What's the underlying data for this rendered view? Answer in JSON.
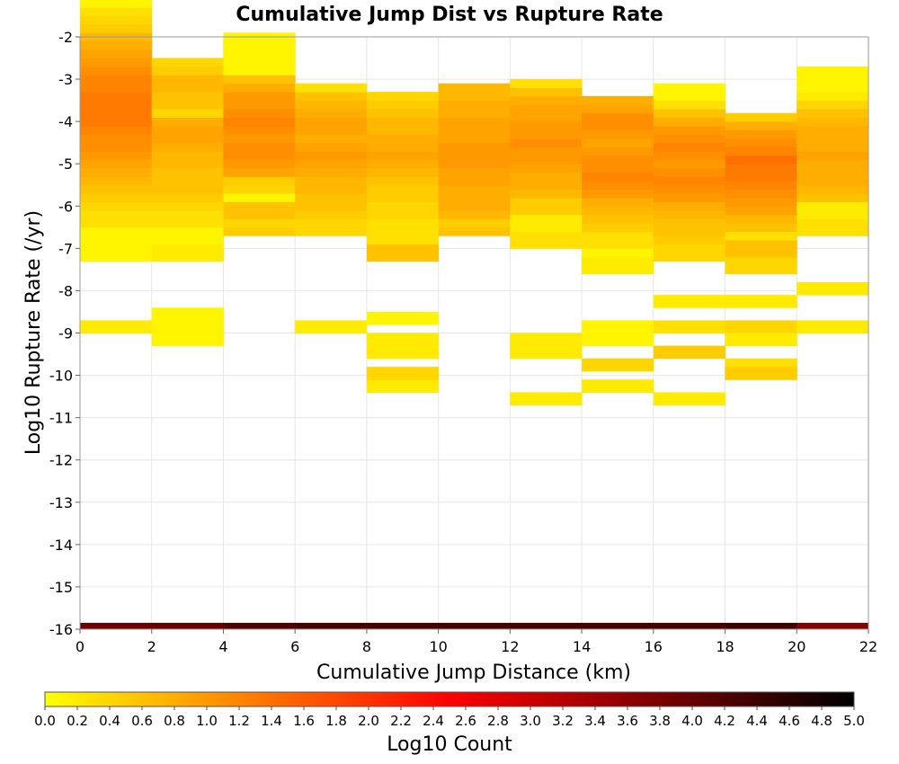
{
  "chart_data": {
    "type": "heatmap",
    "title": "Cumulative Jump Dist vs Rupture Rate",
    "xlabel": "Cumulative Jump Distance (km)",
    "ylabel": "Log10 Rupture Rate (/yr)",
    "xlim": [
      0,
      22
    ],
    "ylim": [
      -16,
      -2
    ],
    "x_ticks": [
      0,
      2,
      4,
      6,
      8,
      10,
      12,
      14,
      16,
      18,
      20,
      22
    ],
    "y_ticks": [
      -2,
      -3,
      -4,
      -5,
      -6,
      -7,
      -8,
      -9,
      -10,
      -11,
      -12,
      -13,
      -14,
      -15,
      -16
    ],
    "grid": true,
    "x_bin_width": 2,
    "y_bin_height": 0.2,
    "colorbar": {
      "label": "Log10 Count",
      "range": [
        0,
        5
      ],
      "ticks": [
        "0.0",
        "0.2",
        "0.4",
        "0.6",
        "0.8",
        "1.0",
        "1.2",
        "1.4",
        "1.6",
        "1.8",
        "2.0",
        "2.2",
        "2.4",
        "2.6",
        "2.8",
        "3.0",
        "3.2",
        "3.4",
        "3.6",
        "3.8",
        "4.0",
        "4.2",
        "4.4",
        "4.6",
        "4.8",
        "5.0"
      ],
      "colors": [
        "#ffff00",
        "#ff7f00",
        "#ff0000",
        "#7f0000",
        "#000000"
      ]
    },
    "columns": [
      {
        "x": 0,
        "y_start": -7.3,
        "values": [
          0.1,
          0.1,
          0.1,
          0.1,
          0.3,
          0.3,
          0.4,
          0.5,
          0.6,
          0.7,
          0.8,
          0.9,
          1.0,
          1.1,
          1.1,
          1.2,
          1.3,
          1.3,
          1.3,
          1.3,
          1.2,
          1.2,
          1.1,
          1.0,
          0.9,
          0.8,
          0.7,
          0.5,
          0.4,
          0.3,
          0.1,
          0.1,
          0.1
        ]
      },
      {
        "x": 2,
        "y_start": -7.3,
        "values": [
          0.2,
          0.2,
          0.1,
          0.1,
          0.3,
          0.3,
          0.4,
          0.5,
          0.6,
          0.6,
          0.6,
          0.7,
          0.7,
          0.8,
          0.9,
          0.9,
          0.8,
          0.4,
          0.6,
          0.6,
          0.7,
          0.7,
          0.5,
          0.4
        ]
      },
      {
        "x": 4,
        "y_start": -6.7,
        "values": [
          0.5,
          0.4,
          0.6,
          0.6,
          0.1,
          0.4,
          0.5,
          0.9,
          1.0,
          1.1,
          1.1,
          1.0,
          1.1,
          1.2,
          1.1,
          1.0,
          1.0,
          0.8,
          0.6,
          0.1,
          0.1,
          0.1,
          0.1,
          0.1
        ]
      },
      {
        "x": 6,
        "y_start": -6.7,
        "values": [
          0.4,
          0.4,
          0.5,
          0.6,
          0.6,
          0.7,
          0.7,
          0.8,
          0.9,
          1.0,
          0.9,
          0.8,
          0.9,
          0.9,
          0.8,
          0.7,
          0.6,
          0.3
        ]
      },
      {
        "x": 8,
        "y_start": -7.3,
        "values": [
          0.6,
          0.6,
          0.3,
          0.3,
          0.3,
          0.4,
          0.4,
          0.5,
          0.5,
          0.6,
          0.7,
          0.8,
          0.9,
          0.8,
          0.8,
          0.7,
          0.7,
          0.6,
          0.5,
          0.4
        ]
      },
      {
        "x": 10,
        "y_start": -6.7,
        "values": [
          0.6,
          0.5,
          0.7,
          0.8,
          0.8,
          0.8,
          0.9,
          0.9,
          1.0,
          1.0,
          1.0,
          0.9,
          0.9,
          0.9,
          0.8,
          0.8,
          0.7,
          0.7
        ]
      },
      {
        "x": 12,
        "y_start": -7.0,
        "values": [
          0.3,
          0.3,
          0.2,
          0.2,
          0.5,
          0.5,
          0.7,
          0.8,
          0.8,
          0.9,
          1.0,
          1.0,
          1.1,
          1.0,
          1.0,
          0.9,
          0.9,
          0.8,
          0.6,
          0.3
        ]
      },
      {
        "x": 14,
        "y_start": -7.6,
        "values": [
          0.2,
          0.2,
          0.1,
          0.3,
          0.3,
          0.5,
          0.6,
          0.7,
          0.8,
          1.0,
          1.1,
          1.2,
          1.1,
          1.1,
          1.0,
          0.9,
          1.0,
          1.1,
          1.1,
          0.9,
          0.8
        ]
      },
      {
        "x": 16,
        "y_start": -7.3,
        "values": [
          0.4,
          0.4,
          0.5,
          0.6,
          0.6,
          0.7,
          0.8,
          1.0,
          1.1,
          1.2,
          1.1,
          1.0,
          1.1,
          1.2,
          1.1,
          1.0,
          0.8,
          0.6,
          0.3,
          0.1,
          0.1
        ]
      },
      {
        "x": 18,
        "y_start": -7.6,
        "values": [
          0.4,
          0.4,
          0.6,
          0.6,
          0.3,
          0.6,
          0.7,
          0.9,
          1.0,
          1.1,
          1.2,
          1.3,
          1.3,
          1.4,
          1.2,
          1.1,
          1.0,
          0.8,
          0.5
        ]
      },
      {
        "x": 20,
        "y_start": -6.7,
        "values": [
          0.3,
          0.3,
          0.2,
          0.2,
          0.6,
          0.7,
          0.8,
          0.8,
          0.8,
          0.9,
          0.8,
          0.8,
          0.8,
          0.7,
          0.6,
          0.4,
          0.2,
          0.1,
          0.1,
          0.1
        ]
      }
    ],
    "sparse_cells": [
      {
        "x": 0,
        "y": -9.0,
        "h": 0.3,
        "v": 0.2
      },
      {
        "x": 2,
        "y": -9.3,
        "h": 0.9,
        "v": 0.1
      },
      {
        "x": 6,
        "y": -9.0,
        "h": 0.3,
        "v": 0.2
      },
      {
        "x": 8,
        "y": -8.8,
        "h": 0.3,
        "v": 0.1
      },
      {
        "x": 8,
        "y": -9.6,
        "h": 0.6,
        "v": 0.2
      },
      {
        "x": 8,
        "y": -10.4,
        "h": 0.3,
        "v": 0.2
      },
      {
        "x": 8,
        "y": -10.1,
        "h": 0.3,
        "v": 0.4
      },
      {
        "x": 12,
        "y": -9.6,
        "h": 0.6,
        "v": 0.2
      },
      {
        "x": 12,
        "y": -10.7,
        "h": 0.3,
        "v": 0.2
      },
      {
        "x": 14,
        "y": -9.3,
        "h": 0.6,
        "v": 0.1
      },
      {
        "x": 14,
        "y": -9.9,
        "h": 0.3,
        "v": 0.4
      },
      {
        "x": 14,
        "y": -10.4,
        "h": 0.3,
        "v": 0.2
      },
      {
        "x": 16,
        "y": -8.4,
        "h": 0.3,
        "v": 0.2
      },
      {
        "x": 16,
        "y": -9.0,
        "h": 0.3,
        "v": 0.3
      },
      {
        "x": 16,
        "y": -9.6,
        "h": 0.3,
        "v": 0.5
      },
      {
        "x": 16,
        "y": -10.7,
        "h": 0.3,
        "v": 0.2
      },
      {
        "x": 18,
        "y": -8.4,
        "h": 0.3,
        "v": 0.2
      },
      {
        "x": 18,
        "y": -9.0,
        "h": 0.3,
        "v": 0.4
      },
      {
        "x": 18,
        "y": -9.3,
        "h": 0.3,
        "v": 0.2
      },
      {
        "x": 18,
        "y": -9.9,
        "h": 0.3,
        "v": 0.3
      },
      {
        "x": 18,
        "y": -10.1,
        "h": 0.3,
        "v": 0.5
      },
      {
        "x": 20,
        "y": -8.1,
        "h": 0.3,
        "v": 0.2
      },
      {
        "x": 20,
        "y": -9.0,
        "h": 0.3,
        "v": 0.2
      }
    ],
    "bottom_band": {
      "y": -16.0,
      "h": 0.15,
      "values": [
        3.9,
        4.0,
        4.2,
        4.3,
        4.3,
        4.3,
        4.3,
        4.3,
        4.3,
        4.4,
        3.7
      ]
    }
  }
}
